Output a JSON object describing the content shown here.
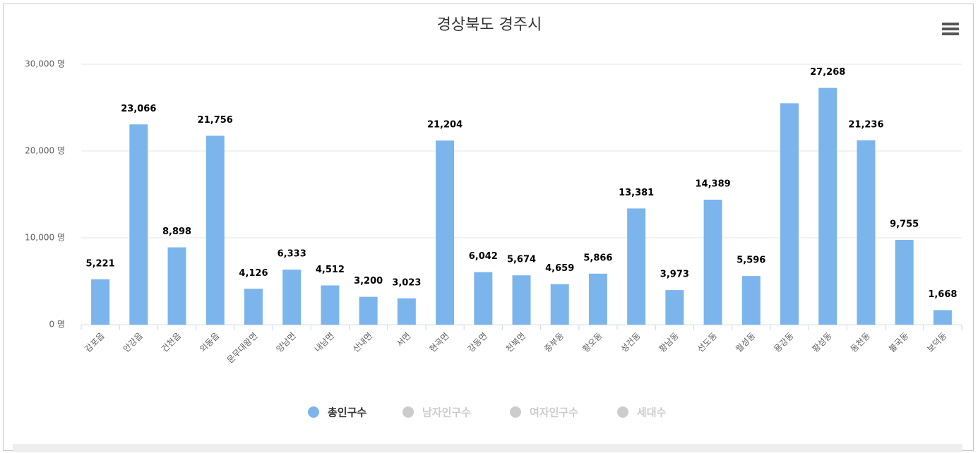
{
  "chart_data": {
    "type": "bar",
    "title": "경상북도 경주시",
    "categories": [
      "감포읍",
      "안강읍",
      "건천읍",
      "외동읍",
      "문무대왕면",
      "양남면",
      "내남면",
      "산내면",
      "서면",
      "현곡면",
      "강동면",
      "천북면",
      "중부동",
      "황오동",
      "성건동",
      "황남동",
      "선도동",
      "월성동",
      "용강동",
      "황성동",
      "동천동",
      "불국동",
      "보덕동"
    ],
    "series": [
      {
        "name": "총인구수",
        "color": "#7cb5ec",
        "values": [
          5221,
          23066,
          8898,
          21756,
          4126,
          6333,
          4512,
          3200,
          3023,
          21204,
          6042,
          5674,
          4659,
          5866,
          13381,
          3973,
          14389,
          5596,
          25500,
          27268,
          21236,
          9755,
          1668
        ],
        "value_labels": [
          "5,221",
          "23,066",
          "8,898",
          "21,756",
          "4,126",
          "6,333",
          "4,512",
          "3,200",
          "3,023",
          "21,204",
          "6,042",
          "5,674",
          "4,659",
          "5,866",
          "13,381",
          "3,973",
          "14,389",
          "5,596",
          null,
          "27,268",
          "21,236",
          "9,755",
          "1,668"
        ]
      },
      {
        "name": "남자인구수",
        "color": "#cccccc",
        "visible": false
      },
      {
        "name": "여자인구수",
        "color": "#cccccc",
        "visible": false
      },
      {
        "name": "세대수",
        "color": "#cccccc",
        "visible": false
      }
    ],
    "ylim": [
      0,
      30000
    ],
    "yticks": [
      {
        "value": 0,
        "label": "0 명"
      },
      {
        "value": 10000,
        "label": "10,000 명"
      },
      {
        "value": 20000,
        "label": "20,000 명"
      },
      {
        "value": 30000,
        "label": "30,000 명"
      }
    ],
    "grid": true
  }
}
